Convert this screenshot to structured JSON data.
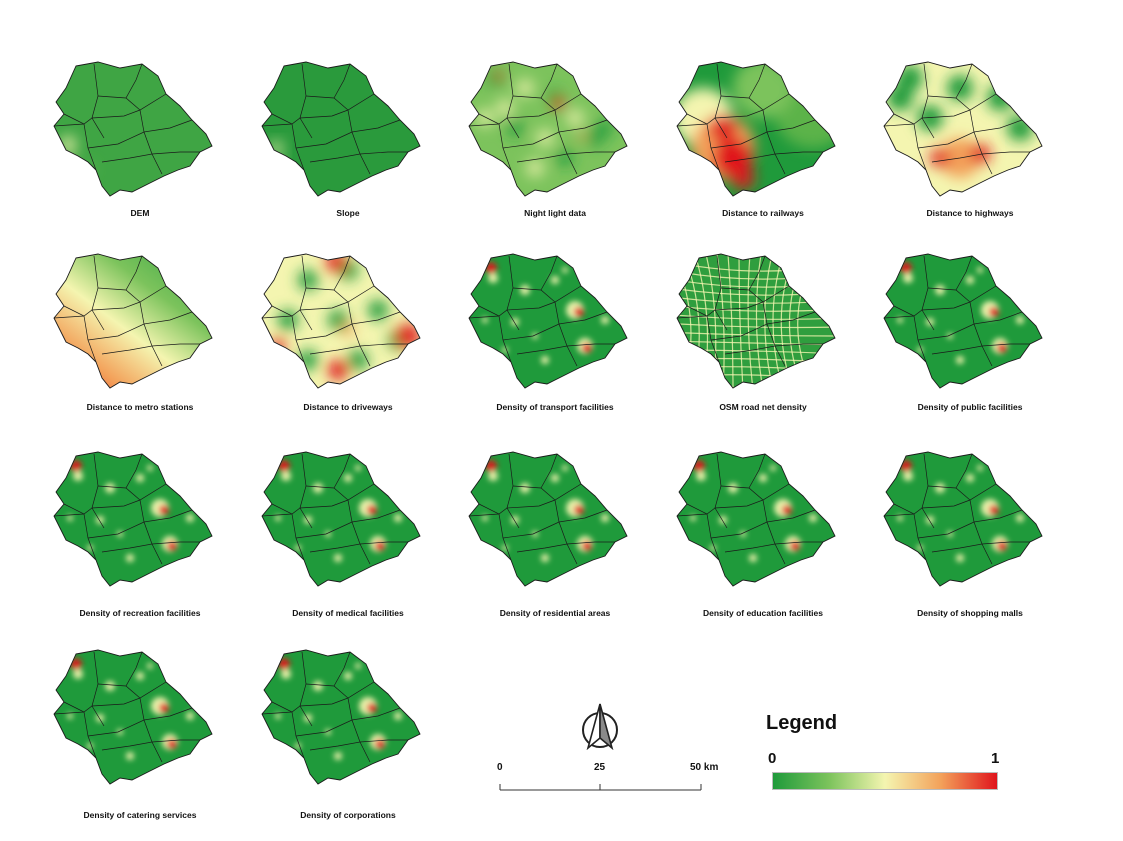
{
  "panels": [
    {
      "name": "dem",
      "caption": "DEM",
      "pattern": "flat"
    },
    {
      "name": "slope",
      "caption": "Slope",
      "pattern": "flat-dark"
    },
    {
      "name": "night-light",
      "caption": "Night light data",
      "pattern": "mottled"
    },
    {
      "name": "dist-railways",
      "caption": "Distance to railways",
      "pattern": "western-band"
    },
    {
      "name": "dist-highways",
      "caption": "Distance to highways",
      "pattern": "stripes"
    },
    {
      "name": "dist-metro",
      "caption": "Distance to metro stations",
      "pattern": "diagonal-gradient"
    },
    {
      "name": "dist-driveways",
      "caption": "Distance to driveways",
      "pattern": "patches"
    },
    {
      "name": "dens-transport",
      "caption": "Density of transport facilities",
      "pattern": "hotspots"
    },
    {
      "name": "osm-road",
      "caption": "OSM road net density",
      "pattern": "network"
    },
    {
      "name": "dens-public",
      "caption": "Density of public facilities",
      "pattern": "hotspots"
    },
    {
      "name": "dens-recreation",
      "caption": "Density of recreation facilities",
      "pattern": "hotspots"
    },
    {
      "name": "dens-medical",
      "caption": "Density of medical facilities",
      "pattern": "hotspots"
    },
    {
      "name": "dens-residential",
      "caption": "Density of residential areas",
      "pattern": "hotspots"
    },
    {
      "name": "dens-education",
      "caption": "Density of education facilities",
      "pattern": "hotspots"
    },
    {
      "name": "dens-shopping",
      "caption": "Density of shopping malls",
      "pattern": "hotspots"
    },
    {
      "name": "dens-catering",
      "caption": "Density of catering services",
      "pattern": "hotspots"
    },
    {
      "name": "dens-corporations",
      "caption": "Density of corporations",
      "pattern": "hotspots"
    }
  ],
  "scalebar": {
    "labels": [
      "0",
      "25",
      "50 km"
    ]
  },
  "legend": {
    "title": "Legend",
    "min_label": "0",
    "max_label": "1",
    "colors": [
      "#1f9a3b",
      "#7cc35c",
      "#f4f5b0",
      "#f3a15a",
      "#e0141c"
    ]
  },
  "north_arrow": {
    "icon": "north-arrow-icon"
  }
}
